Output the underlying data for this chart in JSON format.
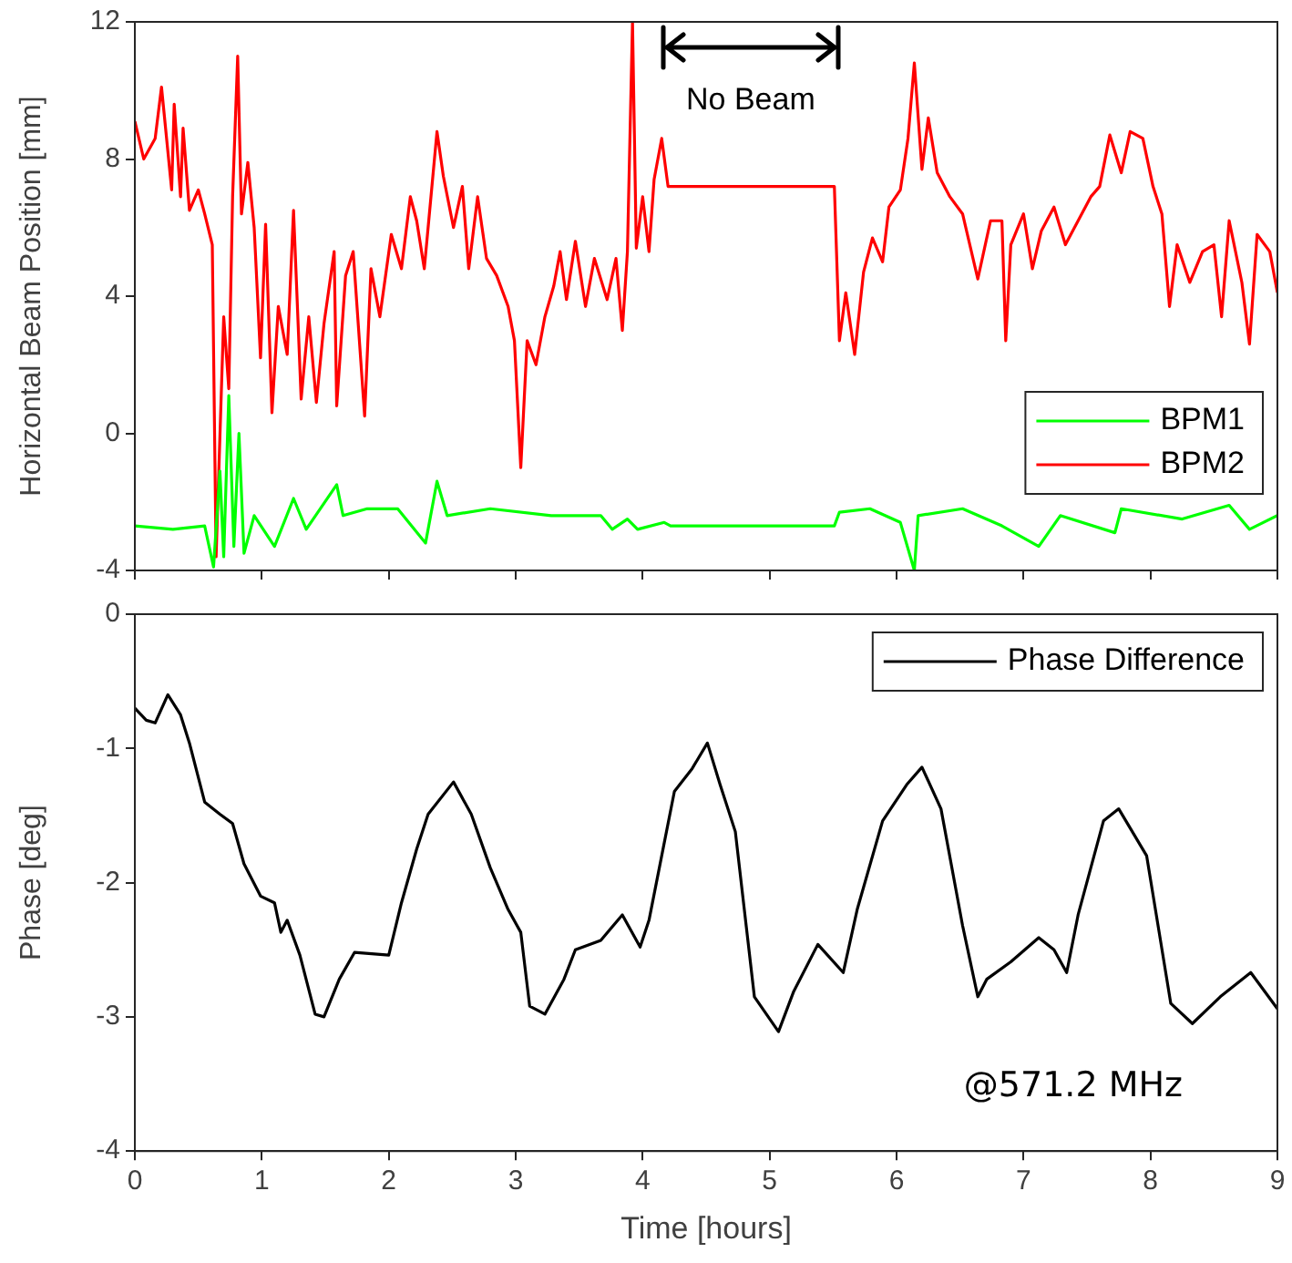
{
  "chart_data": [
    {
      "type": "line",
      "ylabel": "Horizontal Beam Position [mm]",
      "xlim": [
        0,
        9
      ],
      "xticks": [
        0,
        1,
        2,
        3,
        4,
        5,
        6,
        7,
        8,
        9
      ],
      "ylim": [
        -4,
        12
      ],
      "yticks": [
        -4,
        0,
        4,
        8,
        12
      ],
      "tick_labels": "y",
      "grid": false,
      "legend": "bottom right",
      "annotations": [
        "No Beam"
      ],
      "series": [
        {
          "name": "BPM1",
          "color": "#00ff00",
          "x": [
            0,
            0.3,
            0.55,
            0.62,
            0.67,
            0.7,
            0.74,
            0.78,
            0.82,
            0.86,
            0.94,
            1.1,
            1.25,
            1.35,
            1.59,
            1.64,
            1.83,
            2.07,
            2.29,
            2.38,
            2.46,
            2.8,
            3.28,
            3.67,
            3.76,
            3.88,
            3.96,
            4.17,
            4.22,
            5.51,
            5.55,
            5.79,
            6.03,
            6.14,
            6.17,
            6.52,
            6.83,
            7.12,
            7.29,
            7.72,
            7.77,
            8.25,
            8.62,
            8.78,
            9.0
          ],
          "values": [
            -2.7,
            -2.8,
            -2.7,
            -3.9,
            -1.1,
            -3.6,
            1.1,
            -3.3,
            0,
            -3.5,
            -2.4,
            -3.3,
            -1.9,
            -2.8,
            -1.5,
            -2.4,
            -2.2,
            -2.2,
            -3.2,
            -1.4,
            -2.4,
            -2.2,
            -2.4,
            -2.4,
            -2.8,
            -2.5,
            -2.8,
            -2.6,
            -2.7,
            -2.7,
            -2.3,
            -2.2,
            -2.6,
            -4.0,
            -2.4,
            -2.2,
            -2.7,
            -3.3,
            -2.4,
            -2.9,
            -2.2,
            -2.5,
            -2.1,
            -2.8,
            -2.4
          ]
        },
        {
          "name": "BPM2",
          "color": "#ff0000",
          "x": [
            0,
            0.07,
            0.16,
            0.21,
            0.29,
            0.31,
            0.36,
            0.38,
            0.43,
            0.5,
            0.55,
            0.61,
            0.64,
            0.7,
            0.74,
            0.77,
            0.81,
            0.84,
            0.89,
            0.94,
            0.99,
            1.03,
            1.08,
            1.13,
            1.2,
            1.25,
            1.31,
            1.37,
            1.43,
            1.49,
            1.57,
            1.59,
            1.66,
            1.72,
            1.81,
            1.86,
            1.93,
            2.02,
            2.1,
            2.17,
            2.22,
            2.28,
            2.31,
            2.38,
            2.43,
            2.51,
            2.58,
            2.63,
            2.7,
            2.77,
            2.85,
            2.94,
            2.99,
            3.04,
            3.09,
            3.16,
            3.23,
            3.3,
            3.35,
            3.4,
            3.47,
            3.55,
            3.62,
            3.72,
            3.79,
            3.84,
            3.88,
            3.92,
            3.95,
            4.0,
            4.05,
            4.09,
            4.15,
            4.2,
            5.51,
            5.55,
            5.6,
            5.67,
            5.74,
            5.81,
            5.89,
            5.94,
            6.03,
            6.09,
            6.14,
            6.2,
            6.25,
            6.32,
            6.42,
            6.52,
            6.64,
            6.74,
            6.83,
            6.86,
            6.9,
            7.0,
            7.07,
            7.14,
            7.24,
            7.33,
            7.43,
            7.53,
            7.6,
            7.68,
            7.77,
            7.84,
            7.94,
            8.02,
            8.09,
            8.15,
            8.21,
            8.31,
            8.41,
            8.5,
            8.56,
            8.62,
            8.72,
            8.78,
            8.84,
            8.94,
            9.0
          ],
          "values": [
            9.1,
            8.0,
            8.6,
            10.1,
            7.1,
            9.6,
            6.9,
            8.9,
            6.5,
            7.1,
            6.4,
            5.5,
            -3.6,
            3.4,
            1.3,
            6.9,
            11.0,
            6.4,
            7.9,
            6.0,
            2.2,
            6.1,
            0.6,
            3.7,
            2.3,
            6.5,
            1.0,
            3.4,
            0.9,
            3.2,
            5.3,
            0.8,
            4.6,
            5.3,
            0.5,
            4.8,
            3.4,
            5.8,
            4.8,
            6.9,
            6.2,
            4.8,
            6.0,
            8.8,
            7.5,
            6.0,
            7.2,
            4.8,
            6.9,
            5.1,
            4.6,
            3.7,
            2.7,
            -1.0,
            2.7,
            2.0,
            3.4,
            4.3,
            5.3,
            3.9,
            5.6,
            3.7,
            5.1,
            3.9,
            5.1,
            3.0,
            5.3,
            12,
            5.4,
            6.9,
            5.3,
            7.4,
            8.6,
            7.2,
            7.2,
            2.7,
            4.1,
            2.3,
            4.7,
            5.7,
            5.0,
            6.6,
            7.1,
            8.6,
            10.8,
            7.7,
            9.2,
            7.6,
            6.9,
            6.4,
            4.5,
            6.2,
            6.2,
            2.7,
            5.5,
            6.4,
            4.8,
            5.9,
            6.6,
            5.5,
            6.2,
            6.9,
            7.2,
            8.7,
            7.6,
            8.8,
            8.6,
            7.2,
            6.4,
            3.7,
            5.5,
            4.4,
            5.3,
            5.5,
            3.4,
            6.2,
            4.4,
            2.6,
            5.8,
            5.3,
            4.1
          ]
        }
      ]
    },
    {
      "type": "line",
      "xlabel": "Time [hours]",
      "ylabel": "Phase [deg]",
      "xlim": [
        0,
        9
      ],
      "xticks": [
        0,
        1,
        2,
        3,
        4,
        5,
        6,
        7,
        8,
        9
      ],
      "ylim": [
        -4,
        0
      ],
      "yticks": [
        -4,
        -3,
        -2,
        -1,
        0
      ],
      "grid": false,
      "legend": "top right",
      "annotations": [
        "@571.2 MHz"
      ],
      "series": [
        {
          "name": "Phase Difference",
          "color": "#000000",
          "x": [
            0,
            0.09,
            0.16,
            0.26,
            0.36,
            0.43,
            0.55,
            0.67,
            0.77,
            0.86,
            0.99,
            1.1,
            1.15,
            1.2,
            1.3,
            1.42,
            1.49,
            1.61,
            1.73,
            2.0,
            2.1,
            2.22,
            2.31,
            2.51,
            2.65,
            2.8,
            2.94,
            3.04,
            3.11,
            3.23,
            3.38,
            3.47,
            3.67,
            3.84,
            3.98,
            4.05,
            4.15,
            4.25,
            4.39,
            4.51,
            4.61,
            4.73,
            4.88,
            5.07,
            5.19,
            5.38,
            5.58,
            5.69,
            5.89,
            6.08,
            6.2,
            6.35,
            6.52,
            6.64,
            6.71,
            6.9,
            7.12,
            7.24,
            7.34,
            7.43,
            7.63,
            7.75,
            7.97,
            8.16,
            8.33,
            8.55,
            8.79,
            9.0
          ],
          "values": [
            -0.7,
            -0.79,
            -0.81,
            -0.6,
            -0.75,
            -0.96,
            -1.4,
            -1.49,
            -1.56,
            -1.86,
            -2.1,
            -2.15,
            -2.37,
            -2.28,
            -2.54,
            -2.98,
            -3.0,
            -2.72,
            -2.52,
            -2.54,
            -2.15,
            -1.75,
            -1.49,
            -1.25,
            -1.49,
            -1.89,
            -2.2,
            -2.37,
            -2.92,
            -2.98,
            -2.72,
            -2.5,
            -2.43,
            -2.24,
            -2.48,
            -2.28,
            -1.8,
            -1.32,
            -1.15,
            -0.96,
            -1.27,
            -1.62,
            -2.85,
            -3.11,
            -2.81,
            -2.46,
            -2.67,
            -2.2,
            -1.54,
            -1.27,
            -1.14,
            -1.45,
            -2.32,
            -2.85,
            -2.72,
            -2.59,
            -2.41,
            -2.5,
            -2.67,
            -2.24,
            -1.54,
            -1.45,
            -1.8,
            -2.9,
            -3.05,
            -2.85,
            -2.67,
            -2.94
          ]
        }
      ]
    }
  ]
}
